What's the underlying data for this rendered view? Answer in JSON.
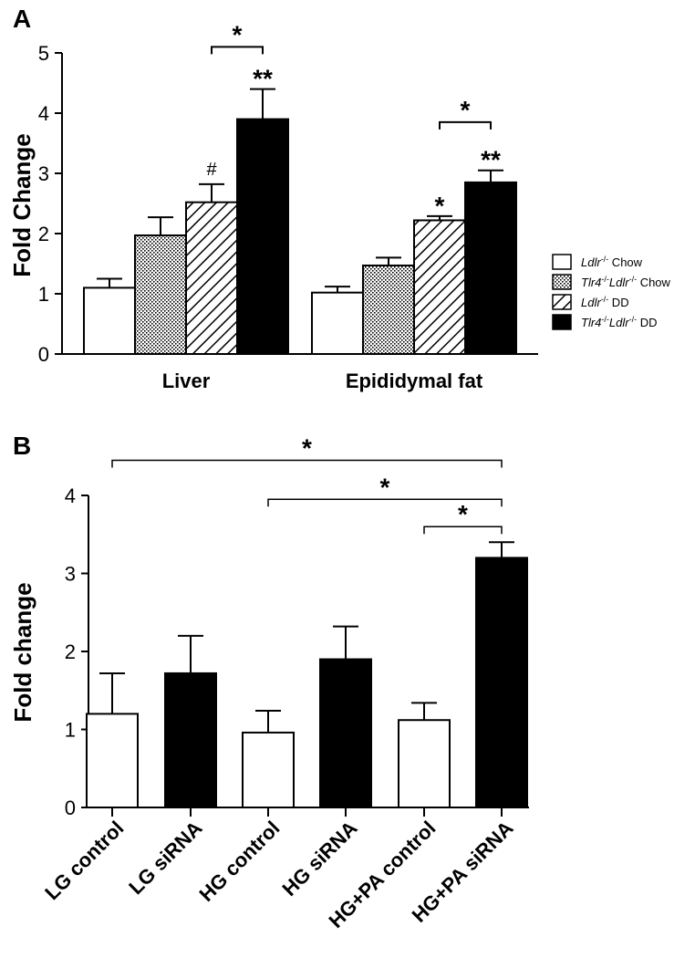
{
  "chart_data": [
    {
      "panel": "A",
      "type": "bar",
      "ylabel": "Fold Change",
      "ylim": [
        0,
        5
      ],
      "yticks": [
        "0",
        "1",
        "2",
        "3",
        "4",
        "5"
      ],
      "categories": [
        "Liver",
        "Epididymal fat"
      ],
      "series": [
        {
          "name": "Ldlr-/- Chow",
          "name_parts": [
            {
              "t": "Ldlr",
              "i": true
            },
            {
              "t": "-/-",
              "sup": true
            },
            {
              "t": " Chow"
            }
          ],
          "fill": "white",
          "values": [
            1.1,
            1.02
          ],
          "errors": [
            0.15,
            0.1
          ]
        },
        {
          "name": "Tlr4-/-Ldlr-/- Chow",
          "name_parts": [
            {
              "t": "Tlr4",
              "i": true
            },
            {
              "t": "-/-",
              "sup": true
            },
            {
              "t": "Ldlr",
              "i": true
            },
            {
              "t": "-/-",
              "sup": true
            },
            {
              "t": " Chow"
            }
          ],
          "fill": "dots",
          "values": [
            1.97,
            1.47
          ],
          "errors": [
            0.3,
            0.13
          ]
        },
        {
          "name": "Ldlr-/- DD",
          "name_parts": [
            {
              "t": "Ldlr",
              "i": true
            },
            {
              "t": "-/-",
              "sup": true
            },
            {
              "t": " DD"
            }
          ],
          "fill": "hatch",
          "values": [
            2.52,
            2.22
          ],
          "errors": [
            0.3,
            0.07
          ]
        },
        {
          "name": "Tlr4-/-Ldlr-/- DD",
          "name_parts": [
            {
              "t": "Tlr4",
              "i": true
            },
            {
              "t": "-/-",
              "sup": true
            },
            {
              "t": "Ldlr",
              "i": true
            },
            {
              "t": "-/-",
              "sup": true
            },
            {
              "t": " DD"
            }
          ],
          "fill": "black",
          "values": [
            3.9,
            2.85
          ],
          "errors": [
            0.5,
            0.2
          ]
        }
      ],
      "annotations": [
        {
          "text": "#",
          "group": 0,
          "series": 2
        },
        {
          "text": "**",
          "group": 0,
          "series": 3
        },
        {
          "text": "*",
          "group": 1,
          "series": 2
        },
        {
          "text": "**",
          "group": 1,
          "series": 3
        }
      ],
      "brackets": [
        {
          "group": 0,
          "from": 2,
          "to": 3,
          "level": 5.1,
          "text": "*"
        },
        {
          "group": 1,
          "from": 2,
          "to": 3,
          "level": 3.85,
          "text": "*"
        }
      ],
      "legend": "right"
    },
    {
      "panel": "B",
      "type": "bar",
      "ylabel": "Fold change",
      "ylim": [
        0,
        4
      ],
      "yticks": [
        "0",
        "1",
        "2",
        "3",
        "4"
      ],
      "categories": [
        "LG control",
        "LG siRNA",
        "HG control",
        "HG siRNA",
        "HG+PA control",
        "HG+PA siRNA"
      ],
      "fills": [
        "white",
        "black",
        "white",
        "black",
        "white",
        "black"
      ],
      "values": [
        1.2,
        1.72,
        0.96,
        1.9,
        1.12,
        3.2
      ],
      "errors": [
        0.52,
        0.48,
        0.28,
        0.42,
        0.22,
        0.2
      ],
      "brackets": [
        {
          "from": 0,
          "to": 5,
          "level": 4.45,
          "text": "*"
        },
        {
          "from": 2,
          "to": 5,
          "level": 3.95,
          "text": "*"
        },
        {
          "from": 4,
          "to": 5,
          "level": 3.6,
          "text": "*"
        }
      ]
    }
  ]
}
